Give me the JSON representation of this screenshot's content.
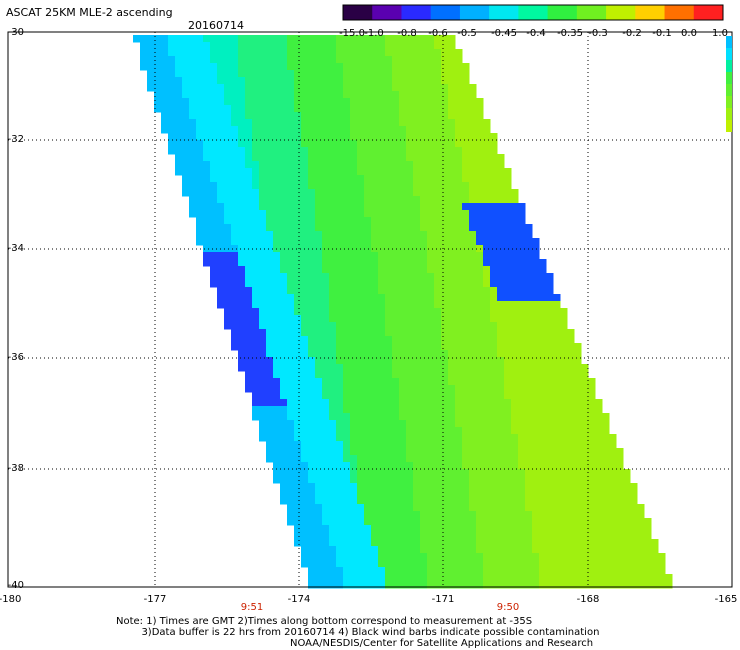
{
  "header": {
    "title": "ASCAT 25KM MLE-2 ascending",
    "date": "20160714"
  },
  "colorbar": {
    "labels": [
      "-15.0",
      "-1.0",
      "-0.8",
      "-0.6",
      "-0.5",
      "-0.45",
      "-0.4",
      "-0.35",
      "-0.3",
      "-0.2",
      "-0.1",
      "0.0",
      "1.0"
    ],
    "colors": [
      "#2a0045",
      "#5a00b0",
      "#2a2aff",
      "#0070ff",
      "#00b0ff",
      "#00e8f0",
      "#00f8a0",
      "#30f040",
      "#70f020",
      "#c0f000",
      "#ffd000",
      "#ff7000",
      "#ff2020"
    ]
  },
  "axes": {
    "lat_labels": [
      "-30",
      "-32",
      "-34",
      "-36",
      "-38",
      "-40"
    ],
    "lon_labels": [
      "-180",
      "-177",
      "-174",
      "-171",
      "-168",
      "-165"
    ]
  },
  "times": [
    "9:51",
    "9:50"
  ],
  "notes": {
    "line1": "Note: 1) Times are GMT 2)Times along bottom correspond to measurement at -35S",
    "line2": "3)Data buffer is 22 hrs from 20160714 4) Black wind barbs indicate possible contamination",
    "credit": "NOAA/NESDIS/Center for Satellite Applications and Research"
  }
}
